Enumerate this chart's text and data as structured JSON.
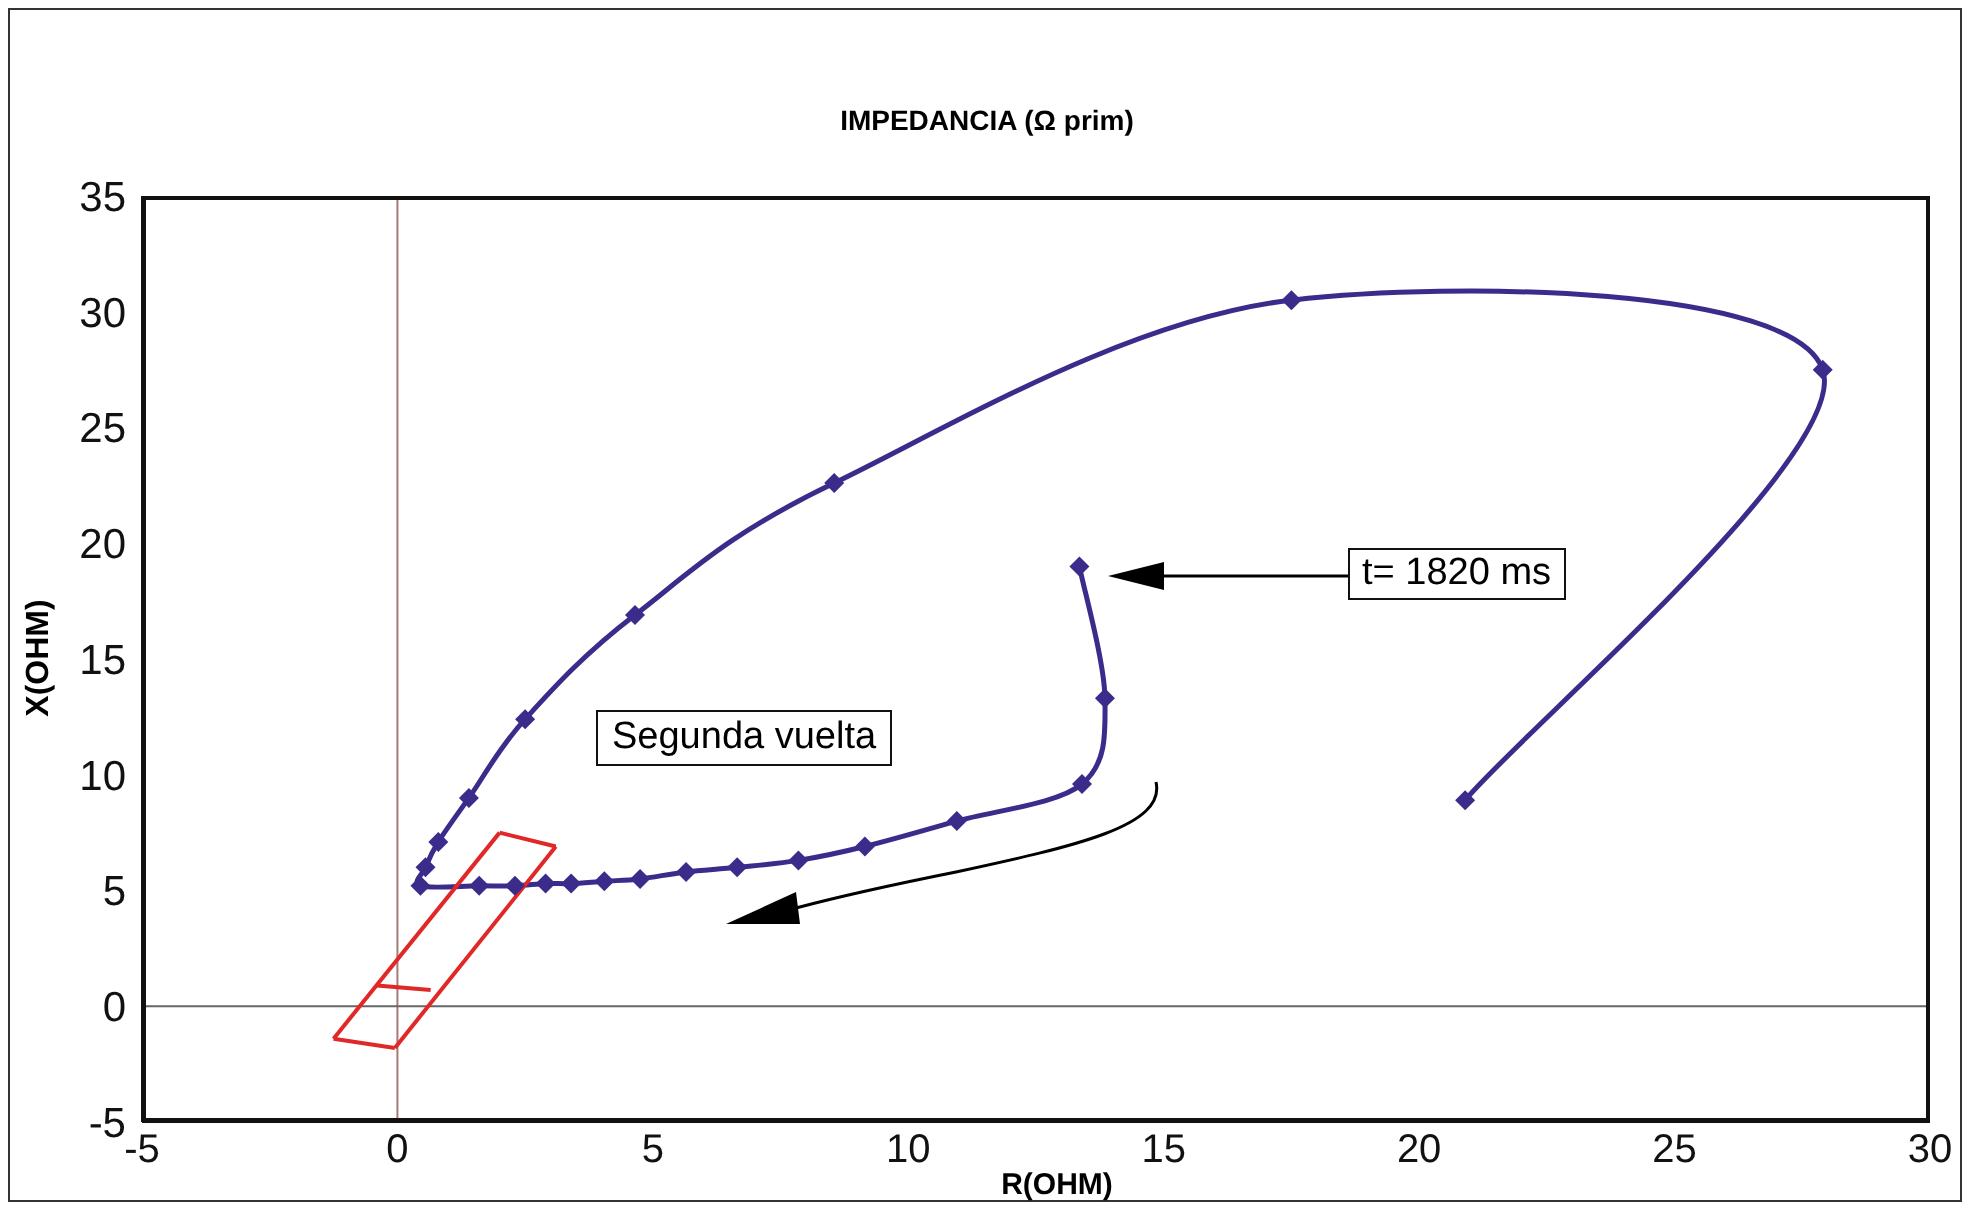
{
  "chart_data": {
    "type": "line",
    "title": "IMPEDANCIA (Ω prim)",
    "xlabel": "R(OHM)",
    "ylabel": "X(OHM)",
    "xlim": [
      -5,
      30
    ],
    "xticks": [
      -5,
      0,
      5,
      10,
      15,
      20,
      25,
      30
    ],
    "ylim": [
      -5,
      35
    ],
    "yticks": [
      -5,
      0,
      5,
      10,
      15,
      20,
      25,
      30,
      35
    ],
    "grid": false,
    "marker": "diamond",
    "line_style": "solid",
    "series": [
      {
        "color": "#3b2c8c",
        "x": [
          13.35,
          13.85,
          13.4,
          10.95,
          9.15,
          7.85,
          6.65,
          5.65,
          4.75,
          4.05,
          3.4,
          2.9,
          2.3,
          1.6,
          0.45,
          0.55,
          0.8,
          1.4,
          2.5,
          4.65,
          8.55,
          17.5,
          27.9,
          20.9
        ],
        "values": [
          19,
          13.3,
          9.6,
          8.0,
          6.9,
          6.3,
          6.0,
          5.8,
          5.5,
          5.4,
          5.3,
          5.3,
          5.2,
          5.2,
          5.2,
          6.0,
          7.1,
          9,
          12.4,
          16.9,
          22.6,
          30.5,
          27.5,
          8.9
        ]
      },
      {
        "color": "#e02828",
        "marker": "none",
        "x": [
          -1.25,
          -0.05
        ],
        "values": [
          -1.4,
          -1.8
        ]
      },
      {
        "color": "#e02828",
        "marker": "none",
        "x": [
          -0.05,
          3.1
        ],
        "values": [
          -1.8,
          6.9
        ]
      },
      {
        "color": "#e02828",
        "marker": "none",
        "x": [
          2.0,
          3.1
        ],
        "values": [
          7.5,
          6.9
        ]
      },
      {
        "color": "#e02828",
        "marker": "none",
        "x": [
          -1.25,
          2.0
        ],
        "values": [
          -1.4,
          7.5
        ]
      },
      {
        "color": "#e02828",
        "marker": "none",
        "x": [
          -0.4,
          0.65
        ],
        "values": [
          0.9,
          0.7
        ]
      }
    ],
    "ref_lines": [
      {
        "axis": "x",
        "value": 0,
        "color": "#a87878"
      },
      {
        "axis": "y",
        "value": 0,
        "color": "#666666"
      }
    ],
    "annotations": [
      "Segunda vuelta",
      "t= 1820 ms"
    ]
  }
}
